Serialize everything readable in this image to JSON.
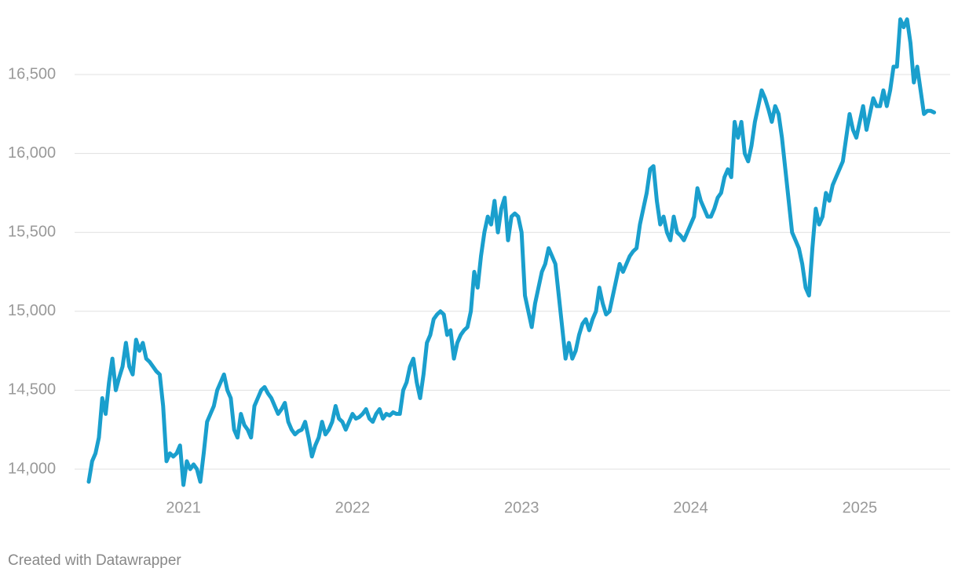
{
  "chart_data": {
    "type": "line",
    "x": [
      2020.44,
      2020.46,
      2020.48,
      2020.5,
      2020.52,
      2020.54,
      2020.56,
      2020.58,
      2020.6,
      2020.62,
      2020.64,
      2020.66,
      2020.68,
      2020.7,
      2020.72,
      2020.74,
      2020.76,
      2020.78,
      2020.8,
      2020.82,
      2020.84,
      2020.86,
      2020.88,
      2020.9,
      2020.92,
      2020.94,
      2020.96,
      2020.98,
      2021.0,
      2021.02,
      2021.04,
      2021.06,
      2021.08,
      2021.1,
      2021.12,
      2021.14,
      2021.16,
      2021.18,
      2021.2,
      2021.22,
      2021.24,
      2021.26,
      2021.28,
      2021.3,
      2021.32,
      2021.34,
      2021.36,
      2021.38,
      2021.4,
      2021.42,
      2021.44,
      2021.46,
      2021.48,
      2021.5,
      2021.52,
      2021.54,
      2021.56,
      2021.58,
      2021.6,
      2021.62,
      2021.64,
      2021.66,
      2021.68,
      2021.7,
      2021.72,
      2021.74,
      2021.76,
      2021.78,
      2021.8,
      2021.82,
      2021.84,
      2021.86,
      2021.88,
      2021.9,
      2021.92,
      2021.94,
      2021.96,
      2021.98,
      2022.0,
      2022.02,
      2022.04,
      2022.06,
      2022.08,
      2022.1,
      2022.12,
      2022.14,
      2022.16,
      2022.18,
      2022.2,
      2022.22,
      2022.24,
      2022.26,
      2022.28,
      2022.3,
      2022.32,
      2022.34,
      2022.36,
      2022.38,
      2022.4,
      2022.42,
      2022.44,
      2022.46,
      2022.48,
      2022.5,
      2022.52,
      2022.54,
      2022.56,
      2022.58,
      2022.6,
      2022.62,
      2022.64,
      2022.66,
      2022.68,
      2022.7,
      2022.72,
      2022.74,
      2022.76,
      2022.78,
      2022.8,
      2022.82,
      2022.84,
      2022.86,
      2022.88,
      2022.9,
      2022.92,
      2022.94,
      2022.96,
      2022.98,
      2023.0,
      2023.02,
      2023.04,
      2023.06,
      2023.08,
      2023.1,
      2023.12,
      2023.14,
      2023.16,
      2023.18,
      2023.2,
      2023.22,
      2023.24,
      2023.26,
      2023.28,
      2023.3,
      2023.32,
      2023.34,
      2023.36,
      2023.38,
      2023.4,
      2023.42,
      2023.44,
      2023.46,
      2023.48,
      2023.5,
      2023.52,
      2023.54,
      2023.56,
      2023.58,
      2023.6,
      2023.62,
      2023.64,
      2023.66,
      2023.68,
      2023.7,
      2023.72,
      2023.74,
      2023.76,
      2023.78,
      2023.8,
      2023.82,
      2023.84,
      2023.86,
      2023.88,
      2023.9,
      2023.92,
      2023.94,
      2023.96,
      2023.98,
      2024.0,
      2024.02,
      2024.04,
      2024.06,
      2024.08,
      2024.1,
      2024.12,
      2024.14,
      2024.16,
      2024.18,
      2024.2,
      2024.22,
      2024.24,
      2024.26,
      2024.28,
      2024.3,
      2024.32,
      2024.34,
      2024.36,
      2024.38,
      2024.4,
      2024.42,
      2024.44,
      2024.46,
      2024.48,
      2024.5,
      2024.52,
      2024.54,
      2024.56,
      2024.58,
      2024.6,
      2024.62,
      2024.64,
      2024.66,
      2024.68,
      2024.7,
      2024.72,
      2024.74,
      2024.76,
      2024.78,
      2024.8,
      2024.82,
      2024.84,
      2024.86,
      2024.88,
      2024.9,
      2024.92,
      2024.94,
      2024.96,
      2024.98,
      2025.0,
      2025.02,
      2025.04,
      2025.06,
      2025.08,
      2025.1,
      2025.12,
      2025.14,
      2025.16,
      2025.18,
      2025.2,
      2025.22,
      2025.24,
      2025.26,
      2025.28,
      2025.3,
      2025.32,
      2025.34,
      2025.36,
      2025.38,
      2025.4,
      2025.42,
      2025.44
    ],
    "series": [
      {
        "color": "#1a9fcd",
        "values": [
          13920,
          14050,
          14100,
          14200,
          14450,
          14350,
          14550,
          14700,
          14500,
          14580,
          14650,
          14800,
          14650,
          14600,
          14820,
          14750,
          14800,
          14700,
          14680,
          14650,
          14620,
          14600,
          14400,
          14050,
          14100,
          14080,
          14100,
          14150,
          13900,
          14050,
          14000,
          14030,
          14000,
          13920,
          14100,
          14300,
          14350,
          14400,
          14500,
          14550,
          14600,
          14500,
          14450,
          14250,
          14200,
          14350,
          14280,
          14250,
          14200,
          14400,
          14450,
          14500,
          14520,
          14480,
          14450,
          14400,
          14350,
          14380,
          14420,
          14300,
          14250,
          14220,
          14240,
          14250,
          14300,
          14200,
          14080,
          14150,
          14200,
          14300,
          14220,
          14250,
          14300,
          14400,
          14320,
          14300,
          14250,
          14300,
          14350,
          14320,
          14330,
          14350,
          14380,
          14320,
          14300,
          14350,
          14380,
          14320,
          14350,
          14340,
          14360,
          14350,
          14350,
          14500,
          14550,
          14650,
          14700,
          14550,
          14450,
          14600,
          14800,
          14850,
          14950,
          14980,
          15000,
          14980,
          14850,
          14880,
          14700,
          14800,
          14850,
          14880,
          14900,
          15000,
          15250,
          15150,
          15350,
          15500,
          15600,
          15550,
          15700,
          15500,
          15650,
          15720,
          15450,
          15600,
          15620,
          15600,
          15500,
          15100,
          15000,
          14900,
          15050,
          15150,
          15250,
          15300,
          15400,
          15350,
          15300,
          15100,
          14900,
          14700,
          14800,
          14700,
          14750,
          14850,
          14920,
          14950,
          14880,
          14950,
          15000,
          15150,
          15050,
          14980,
          15000,
          15100,
          15200,
          15300,
          15250,
          15300,
          15350,
          15380,
          15400,
          15550,
          15650,
          15750,
          15900,
          15920,
          15700,
          15550,
          15600,
          15500,
          15450,
          15600,
          15500,
          15480,
          15450,
          15500,
          15550,
          15600,
          15780,
          15700,
          15650,
          15600,
          15600,
          15650,
          15720,
          15750,
          15850,
          15900,
          15850,
          16200,
          16100,
          16200,
          16000,
          15950,
          16050,
          16200,
          16300,
          16400,
          16350,
          16280,
          16200,
          16300,
          16250,
          16100,
          15900,
          15700,
          15500,
          15450,
          15400,
          15300,
          15150,
          15100,
          15400,
          15650,
          15550,
          15600,
          15750,
          15700,
          15800,
          15850,
          15900,
          15950,
          16100,
          16250,
          16150,
          16100,
          16200,
          16300,
          16150,
          16250,
          16350,
          16300,
          16300,
          16400,
          16300,
          16400,
          16550,
          16550,
          16850,
          16800,
          16850,
          16700,
          16450,
          16550,
          16400,
          16250,
          16270,
          16270,
          16260
        ]
      }
    ],
    "xlim": [
      2020.44,
      2025.44
    ],
    "xticks": [
      2021,
      2022,
      2023,
      2024,
      2025
    ],
    "ylim": [
      13890,
      16870
    ],
    "yticks": [
      {
        "value": 14000,
        "label": "14,000"
      },
      {
        "value": 14500,
        "label": "14,500"
      },
      {
        "value": 15000,
        "label": "15,000"
      },
      {
        "value": 15500,
        "label": "15,500"
      },
      {
        "value": 16000,
        "label": "16,000"
      },
      {
        "value": 16500,
        "label": "16,500"
      }
    ],
    "grid": true,
    "credit": "Created with Datawrapper"
  }
}
